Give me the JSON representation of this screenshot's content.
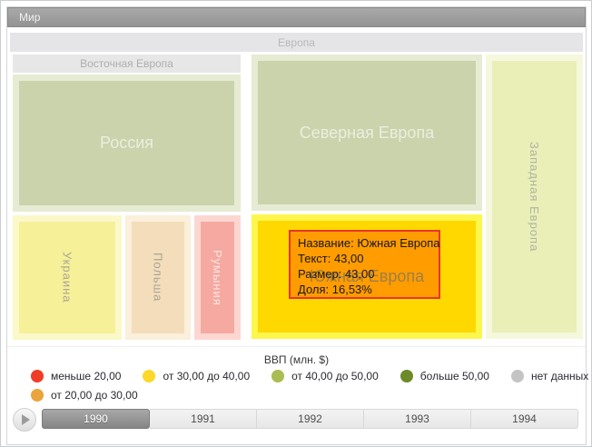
{
  "breadcrumb": {
    "root": "Мир"
  },
  "treemap": {
    "europe_label": "Европа",
    "east_label": "Восточная Европа",
    "nodes": {
      "russia": {
        "label": "Россия",
        "fill": "#cad3ac",
        "halo": "#e6ebd3"
      },
      "ukraine": {
        "label": "Украина",
        "fill": "#f6f098",
        "halo": "#fbf8c9"
      },
      "poland": {
        "label": "Польша",
        "fill": "#f3ddba",
        "halo": "#faf0db"
      },
      "romania": {
        "label": "Румыния",
        "fill": "#f5a9a0",
        "halo": "#fcd7d1"
      },
      "north": {
        "label": "Северная Европа",
        "fill": "#cad3ac",
        "halo": "#e6ebd3"
      },
      "south": {
        "label": "Южная Европа",
        "fill": "#ffd800",
        "halo": "#fdf64d"
      },
      "west": {
        "label": "Западная Европа",
        "fill": "#e9efb7",
        "halo": "#f5f8dd"
      }
    }
  },
  "tooltip": {
    "bg": "#ff9c00",
    "border_color": "#e8342a",
    "lines": [
      "Название: Южная Европа",
      "Текст: 43,00",
      "Размер: 43,00",
      "Доля: 16,53%"
    ]
  },
  "legend": {
    "title": "ВВП (млн. $)",
    "row1": [
      {
        "label": "меньше 20,00",
        "color": "#f03c26"
      },
      {
        "label": "от 30,00 до 40,00",
        "color": "#fdd829"
      },
      {
        "label": "от 40,00 до 50,00",
        "color": "#a9bd52"
      },
      {
        "label": "больше 50,00",
        "color": "#6d8a28"
      },
      {
        "label": "нет данных",
        "color": "#c4c4c4"
      }
    ],
    "row2": [
      {
        "label": "от 20,00 до 30,00",
        "color": "#e9a43c"
      }
    ]
  },
  "timeline": {
    "years": [
      "1990",
      "1991",
      "1992",
      "1993",
      "1994"
    ],
    "selected": "1990"
  },
  "chart_data": {
    "type": "treemap",
    "root": "Мир",
    "level2_group": "Европа",
    "level3_group": "Восточная Европа",
    "legend_title": "ВВП (млн. $)",
    "bins": [
      "меньше 20,00",
      "от 20,00 до 30,00",
      "от 30,00 до 40,00",
      "от 40,00 до 50,00",
      "больше 50,00",
      "нет данных"
    ],
    "nodes": [
      {
        "name": "Россия",
        "parent": "Восточная Европа",
        "bin": "от 40,00 до 50,00",
        "fill": "#cad3ac"
      },
      {
        "name": "Украина",
        "parent": "Восточная Европа",
        "bin": "от 30,00 до 40,00",
        "fill": "#f6f098"
      },
      {
        "name": "Польша",
        "parent": "Восточная Европа",
        "bin": "от 20,00 до 30,00",
        "fill": "#f3ddba"
      },
      {
        "name": "Румыния",
        "parent": "Восточная Европа",
        "bin": "меньше 20,00",
        "fill": "#f5a9a0"
      },
      {
        "name": "Северная Европа",
        "parent": "Европа",
        "bin": "от 40,00 до 50,00",
        "fill": "#cad3ac"
      },
      {
        "name": "Южная Европа",
        "parent": "Европа",
        "value": 43.0,
        "share_pct": 16.53,
        "highlighted": true,
        "fill": "#ffd800"
      },
      {
        "name": "Западная Европа",
        "parent": "Европа",
        "bin": "от 40,00 до 50,00",
        "fill": "#e9efb7"
      }
    ],
    "selected_year": "1990",
    "years": [
      "1990",
      "1991",
      "1992",
      "1993",
      "1994"
    ]
  }
}
